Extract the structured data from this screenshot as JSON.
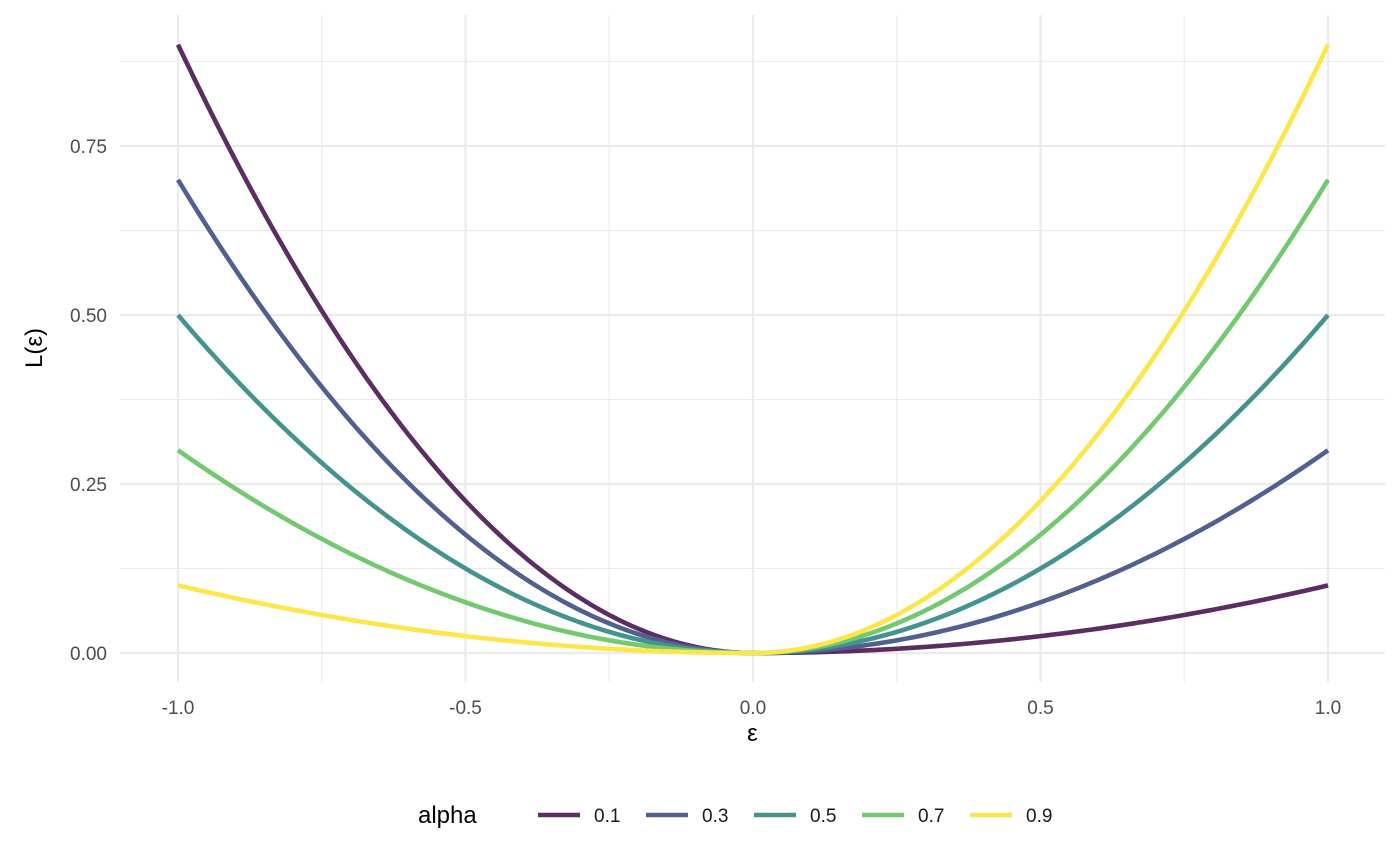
{
  "chart_data": {
    "type": "line",
    "xlabel": "ε",
    "ylabel": "L(ε)",
    "xlim": [
      -1.0,
      1.0
    ],
    "ylim": [
      0.0,
      0.9
    ],
    "x_major_ticks": [
      -1.0,
      -0.5,
      0.0,
      0.5,
      1.0
    ],
    "x_tick_labels": [
      "-1.0",
      "-0.5",
      "0.0",
      "0.5",
      "1.0"
    ],
    "x_minor_ticks": [
      -0.75,
      -0.25,
      0.25,
      0.75
    ],
    "y_major_ticks": [
      0.0,
      0.25,
      0.5,
      0.75
    ],
    "y_tick_labels": [
      "0.00",
      "0.25",
      "0.50",
      "0.75"
    ],
    "y_minor_ticks": [
      0.125,
      0.375,
      0.625,
      0.875
    ],
    "grid": true,
    "legend": {
      "title": "alpha",
      "position": "bottom"
    },
    "series": [
      {
        "name": "0.1",
        "alpha": 0.1,
        "color": "#5c2d63",
        "left_value_at_minus_1": 0.9,
        "right_value_at_1": 0.1
      },
      {
        "name": "0.3",
        "alpha": 0.3,
        "color": "#52608f",
        "left_value_at_minus_1": 0.7,
        "right_value_at_1": 0.3
      },
      {
        "name": "0.5",
        "alpha": 0.5,
        "color": "#45938f",
        "left_value_at_minus_1": 0.5,
        "right_value_at_1": 0.5
      },
      {
        "name": "0.7",
        "alpha": 0.7,
        "color": "#73c96f",
        "left_value_at_minus_1": 0.3,
        "right_value_at_1": 0.7
      },
      {
        "name": "0.9",
        "alpha": 0.9,
        "color": "#fce64a",
        "left_value_at_minus_1": 0.1,
        "right_value_at_1": 0.9
      }
    ]
  }
}
